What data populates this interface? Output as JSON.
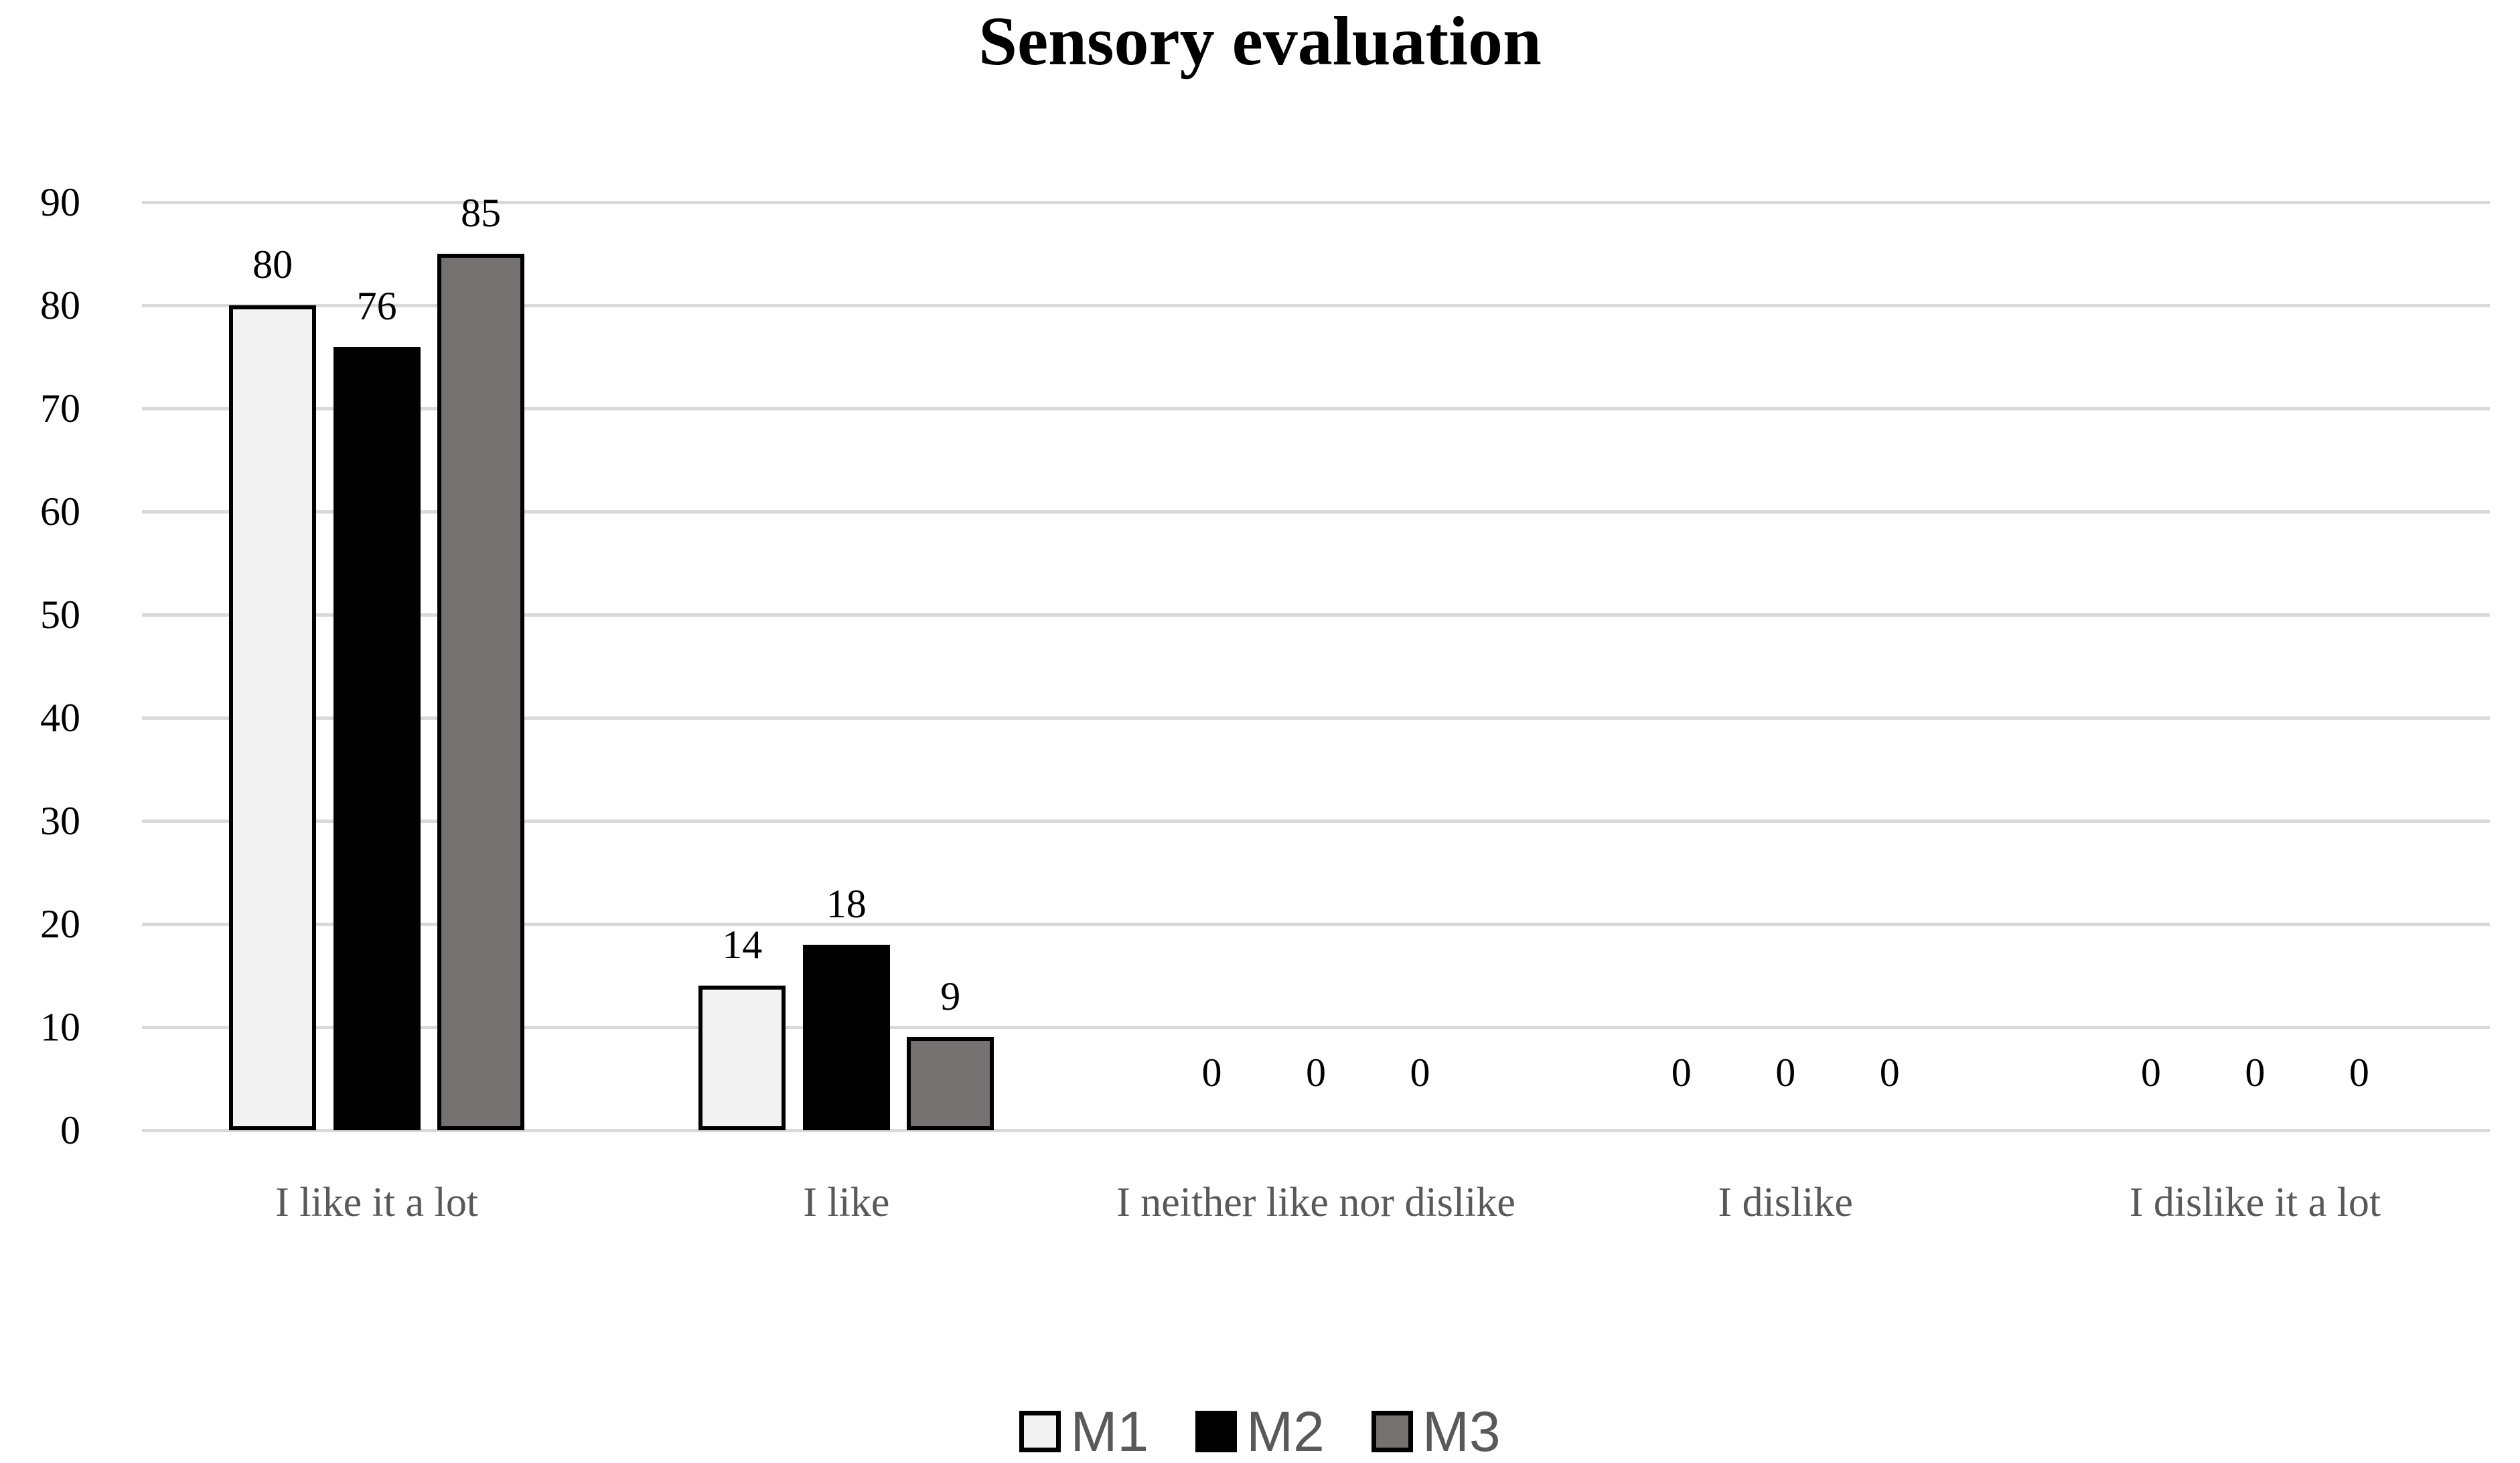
{
  "title": "Sensory evaluation",
  "chart_data": {
    "type": "bar",
    "title": "Sensory evaluation",
    "categories": [
      "I like it a lot",
      "I like",
      "I neither like nor dislike",
      "I dislike",
      "I dislike it a lot"
    ],
    "series": [
      {
        "name": "M1",
        "color": "#F2F2F2",
        "values": [
          80,
          14,
          0,
          0,
          0
        ]
      },
      {
        "name": "M2",
        "color": "#000000",
        "values": [
          76,
          18,
          0,
          0,
          0
        ]
      },
      {
        "name": "M3",
        "color": "#767171",
        "values": [
          85,
          9,
          0,
          0,
          0
        ]
      }
    ],
    "ylim": [
      0,
      90
    ],
    "yticks": [
      0,
      10,
      20,
      30,
      40,
      50,
      60,
      70,
      80,
      90
    ],
    "grid": "horizontal",
    "data_labels": true,
    "legend_position": "bottom"
  },
  "colors": {
    "gridline": "#D9D9D9",
    "bar_border": "#000000",
    "title_text": "#000000",
    "tick_text": "#000000",
    "category_text": "#595959",
    "legend_text": "#595959",
    "data_label_text": "#000000"
  }
}
